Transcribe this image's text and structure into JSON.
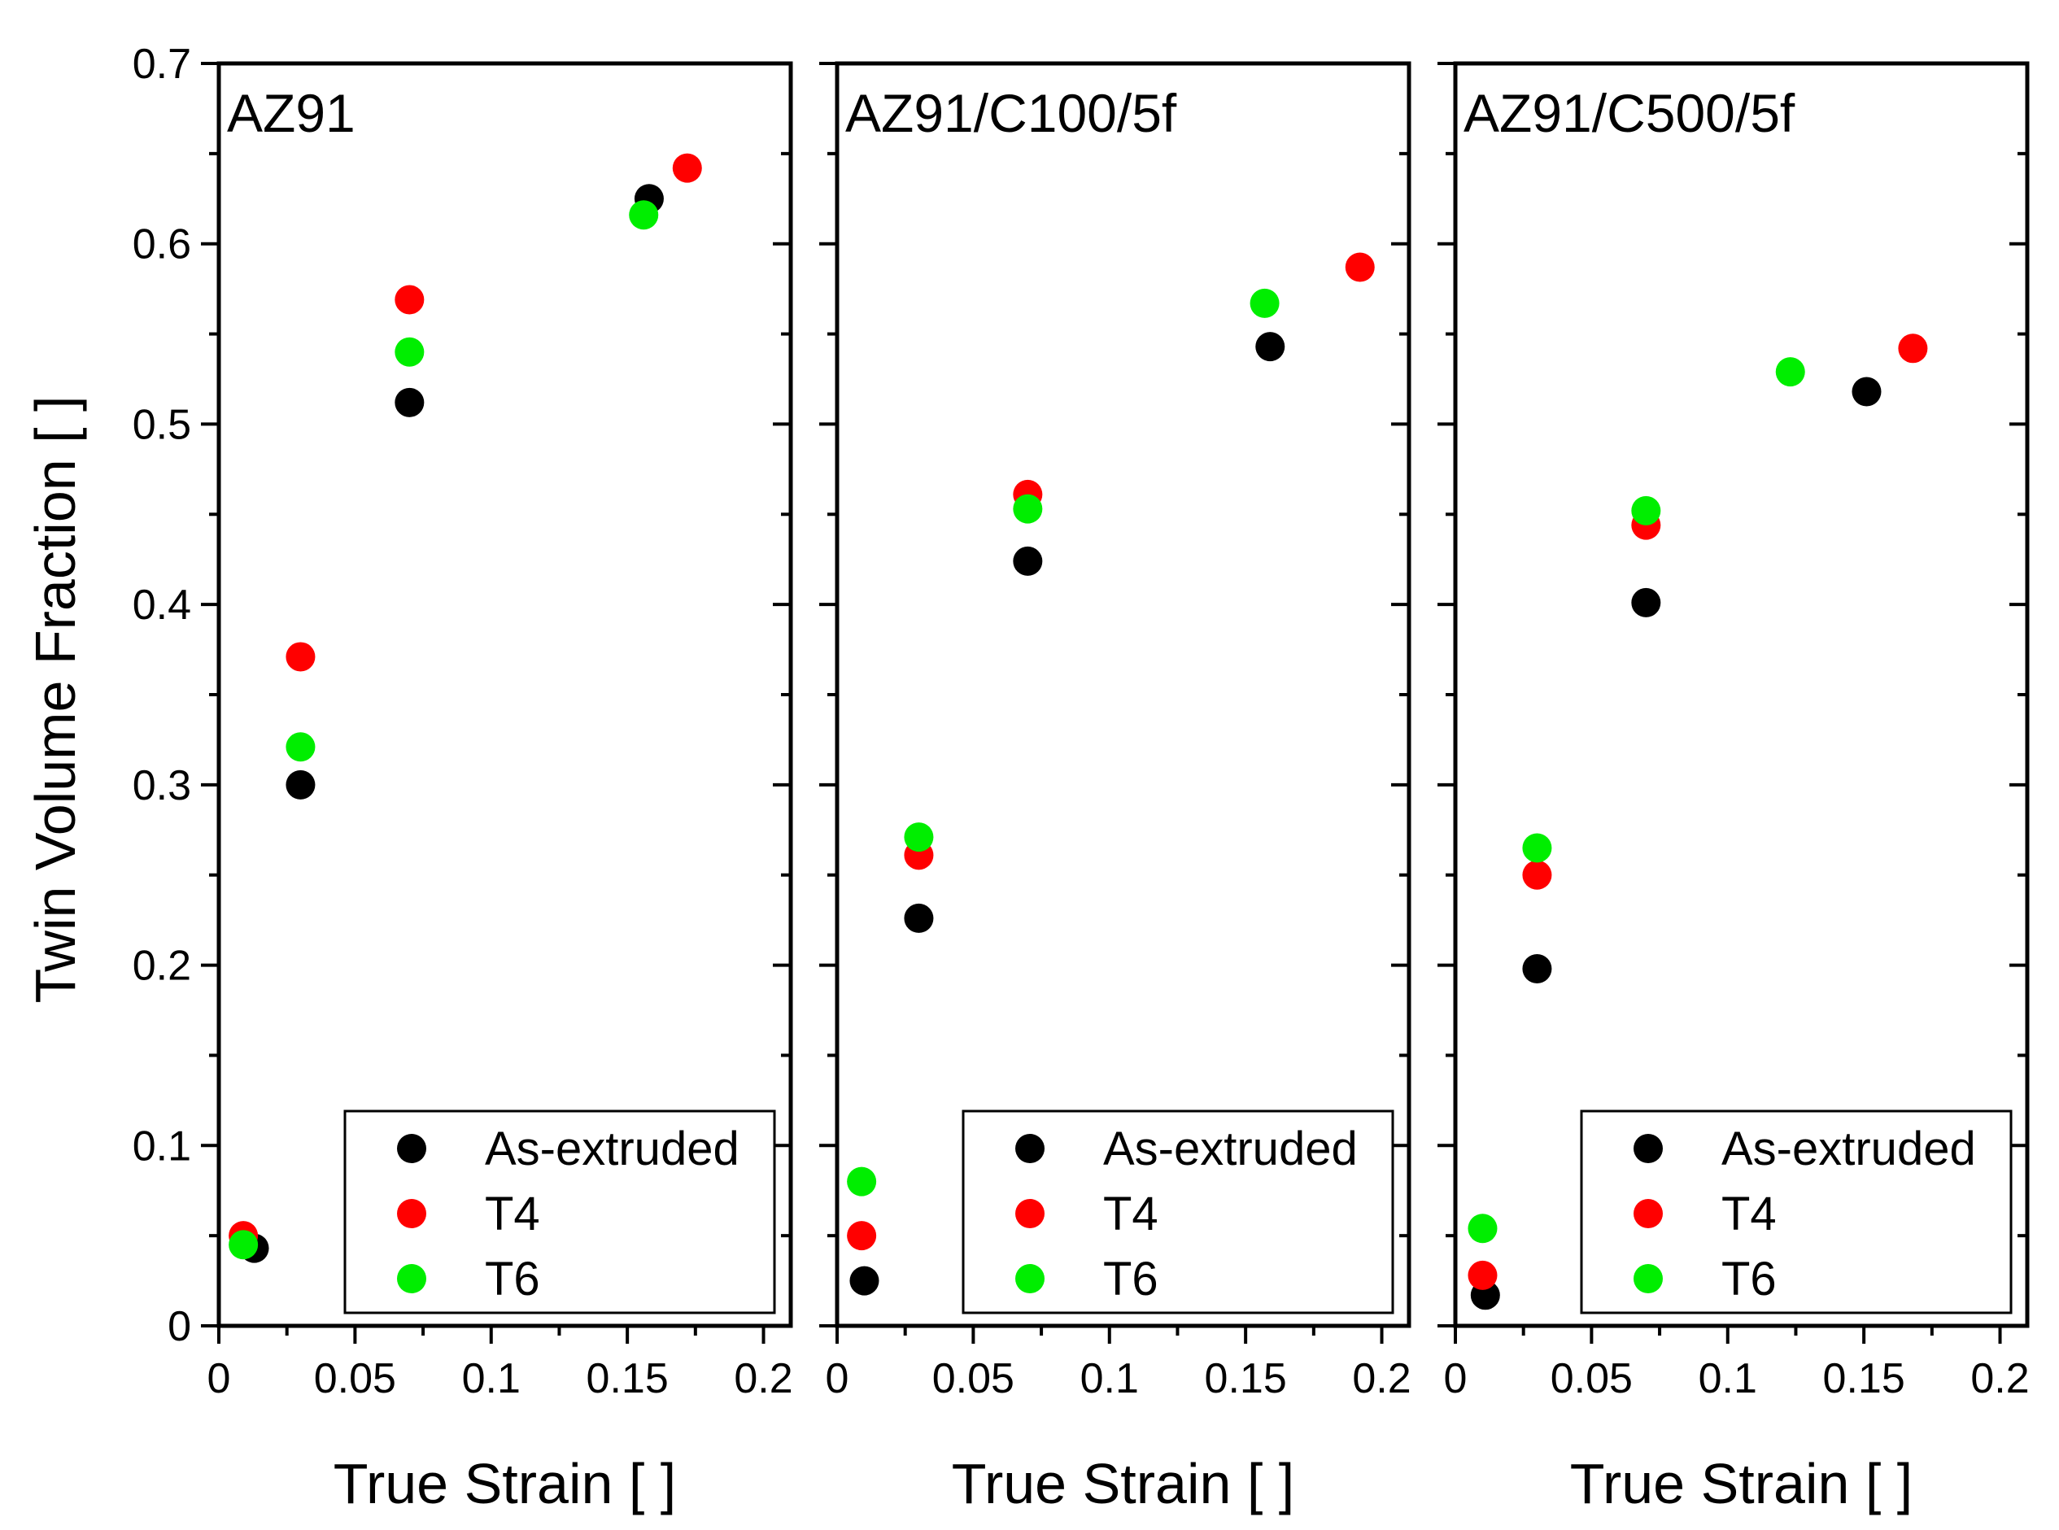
{
  "chart_data": {
    "type": "scatter",
    "ylabel": "Twin Volume Fraction [ ]",
    "ylim": [
      0,
      0.7
    ],
    "yticks": [
      "0",
      "0.1",
      "0.2",
      "0.3",
      "0.4",
      "0.5",
      "0.6",
      "0.7"
    ],
    "xlim": [
      0,
      0.21
    ],
    "xticks": [
      "0",
      "0.05",
      "0.1",
      "0.15",
      "0.2"
    ],
    "legend_position": "bottom-right",
    "colors": {
      "As-extruded": "#000000",
      "T4": "#ff0000",
      "T6": "#00ee00"
    },
    "panels": [
      {
        "title": "AZ91",
        "xlabel": "True Strain [ ]",
        "legend": [
          "As-extruded",
          "T4",
          "T6"
        ],
        "series": [
          {
            "name": "As-extruded",
            "x": [
              0.013,
              0.03,
              0.07,
              0.158
            ],
            "y": [
              0.043,
              0.3,
              0.512,
              0.625
            ]
          },
          {
            "name": "T4",
            "x": [
              0.009,
              0.03,
              0.07,
              0.172
            ],
            "y": [
              0.05,
              0.371,
              0.569,
              0.642
            ]
          },
          {
            "name": "T6",
            "x": [
              0.009,
              0.03,
              0.07,
              0.156
            ],
            "y": [
              0.045,
              0.321,
              0.54,
              0.616
            ]
          }
        ]
      },
      {
        "title": "AZ91/C100/5f",
        "xlabel": "True Strain [ ]",
        "legend": [
          "As-extruded",
          "T4",
          "T6"
        ],
        "series": [
          {
            "name": "As-extruded",
            "x": [
              0.01,
              0.03,
              0.07,
              0.159
            ],
            "y": [
              0.025,
              0.226,
              0.424,
              0.543
            ]
          },
          {
            "name": "T4",
            "x": [
              0.009,
              0.03,
              0.07,
              0.192
            ],
            "y": [
              0.05,
              0.261,
              0.461,
              0.587
            ]
          },
          {
            "name": "T6",
            "x": [
              0.009,
              0.03,
              0.07,
              0.157
            ],
            "y": [
              0.08,
              0.271,
              0.453,
              0.567
            ]
          }
        ]
      },
      {
        "title": "AZ91/C500/5f",
        "xlabel": "True Strain [ ]",
        "legend": [
          "As-extruded",
          "T4",
          "T6"
        ],
        "series": [
          {
            "name": "As-extruded",
            "x": [
              0.011,
              0.03,
              0.07,
              0.151
            ],
            "y": [
              0.017,
              0.198,
              0.401,
              0.518
            ]
          },
          {
            "name": "T4",
            "x": [
              0.01,
              0.03,
              0.07,
              0.168
            ],
            "y": [
              0.028,
              0.25,
              0.444,
              0.542
            ]
          },
          {
            "name": "T6",
            "x": [
              0.01,
              0.03,
              0.07,
              0.123
            ],
            "y": [
              0.054,
              0.265,
              0.452,
              0.529
            ]
          }
        ]
      }
    ]
  }
}
